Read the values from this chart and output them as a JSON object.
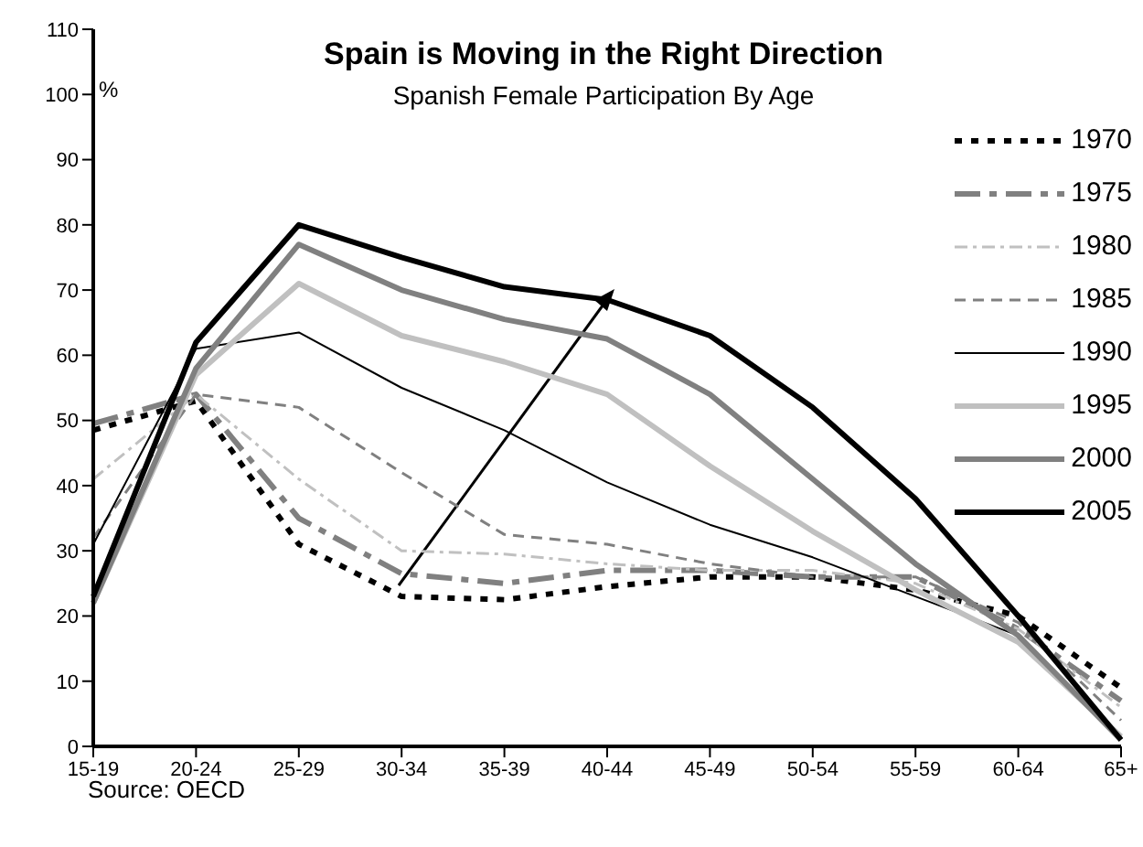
{
  "chart_data": {
    "type": "line",
    "title": "Spain is Moving in the Right Direction",
    "subtitle": "Spanish Female Participation By Age",
    "ylabel": "%",
    "annotations": [
      "Source: OECD"
    ],
    "categories": [
      "15-19",
      "20-24",
      "25-29",
      "30-34",
      "35-39",
      "40-44",
      "45-49",
      "50-54",
      "55-59",
      "60-64",
      "65+"
    ],
    "ylim": [
      0,
      110
    ],
    "yticks": [
      0,
      10,
      20,
      30,
      40,
      50,
      60,
      70,
      80,
      90,
      100,
      110
    ],
    "legend": "top right",
    "marker": "none",
    "series": [
      {
        "name": "1970",
        "color": "#000000",
        "line_style": "dotted",
        "values": [
          48.5,
          53,
          31,
          23,
          22.5,
          24.5,
          26,
          26,
          24,
          20,
          9
        ]
      },
      {
        "name": "1975",
        "color": "#808080",
        "line_style": "dashed",
        "values": [
          49.5,
          54,
          35,
          26.5,
          25,
          27,
          27,
          26,
          26,
          18,
          7
        ]
      },
      {
        "name": "1980",
        "color": "#c0c0c0",
        "line_style": "dashed",
        "values": [
          41,
          54,
          41,
          30,
          29.5,
          28,
          27,
          27,
          25,
          18,
          6
        ]
      },
      {
        "name": "1985",
        "color": "#808080",
        "line_style": "dashed",
        "values": [
          32,
          54,
          52,
          42,
          32.5,
          31,
          28,
          26,
          26,
          19,
          4
        ]
      },
      {
        "name": "1990",
        "color": "#000000",
        "line_style": "solid",
        "values": [
          31,
          61,
          63.5,
          55,
          48.5,
          40.5,
          34,
          29,
          23,
          17,
          1.5
        ]
      },
      {
        "name": "1995",
        "color": "#c0c0c0",
        "line_style": "solid",
        "values": [
          22,
          57,
          71,
          63,
          59,
          54,
          43,
          33,
          24,
          16,
          1.5
        ]
      },
      {
        "name": "2000",
        "color": "#808080",
        "line_style": "solid",
        "values": [
          22,
          58,
          77,
          70,
          65.5,
          62.5,
          54,
          41,
          28,
          17,
          1
        ]
      },
      {
        "name": "2005",
        "color": "#000000",
        "line_style": "solid",
        "values": [
          23,
          62,
          80,
          75,
          70.5,
          68.5,
          63,
          52,
          38,
          20,
          1
        ]
      }
    ]
  }
}
